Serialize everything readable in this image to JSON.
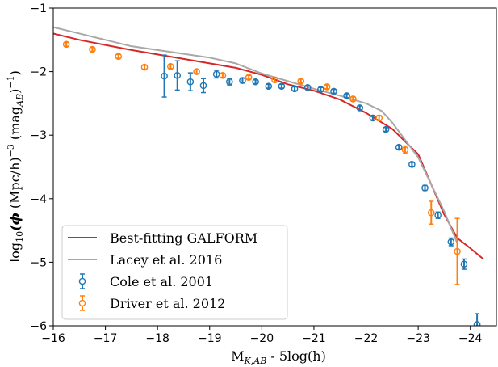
{
  "chart_data": {
    "type": "line",
    "xlabel_main": "M",
    "xlabel_sub": "K,AB",
    "xlabel_rest": " - 5log(h)",
    "ylabel_pre": "log",
    "ylabel_sub": "10",
    "ylabel_phi": "(ϕ",
    "ylabel_mid": " (Mpc/h)",
    "ylabel_exp": "−3",
    "ylabel_post": " (mag",
    "ylabel_sub2": "AB",
    "ylabel_end": ")",
    "ylabel_exp2": "−1",
    "ylabel_close": ")",
    "xlim": [
      -16,
      -24.5
    ],
    "ylim": [
      -6,
      -1
    ],
    "x_ticks": [
      -16,
      -17,
      -18,
      -19,
      -20,
      -21,
      -22,
      -23,
      -24
    ],
    "x_tick_labels": [
      "−16",
      "−17",
      "−18",
      "−19",
      "−20",
      "−21",
      "−22",
      "−23",
      "−24"
    ],
    "y_ticks": [
      -6,
      -5,
      -4,
      -3,
      -2,
      -1
    ],
    "y_tick_labels": [
      "−6",
      "−5",
      "−4",
      "−3",
      "−2",
      "−1"
    ],
    "legend_position": "lower-left",
    "series": [
      {
        "name": "Best-fitting GALFORM",
        "kind": "line",
        "color": "#d62728",
        "x": [
          -16.0,
          -16.5,
          -17.0,
          -17.5,
          -18.0,
          -18.5,
          -19.0,
          -19.5,
          -20.0,
          -20.5,
          -21.0,
          -21.5,
          -22.0,
          -22.5,
          -23.0,
          -23.5,
          -23.75,
          -24.0,
          -24.25
        ],
        "y": [
          -1.4,
          -1.5,
          -1.58,
          -1.66,
          -1.73,
          -1.8,
          -1.87,
          -1.94,
          -2.05,
          -2.2,
          -2.3,
          -2.44,
          -2.65,
          -2.9,
          -3.3,
          -4.25,
          -4.62,
          -4.78,
          -4.95
        ]
      },
      {
        "name": "Lacey et al. 2016",
        "kind": "line",
        "color": "#a8a8a8",
        "x": [
          -16.0,
          -16.5,
          -17.0,
          -17.5,
          -18.0,
          -18.5,
          -19.0,
          -19.5,
          -20.0,
          -20.5,
          -21.0,
          -21.5,
          -22.0,
          -22.3,
          -22.5,
          -23.0,
          -23.5,
          -23.75
        ],
        "y": [
          -1.3,
          -1.4,
          -1.5,
          -1.6,
          -1.66,
          -1.72,
          -1.78,
          -1.87,
          -2.03,
          -2.15,
          -2.27,
          -2.38,
          -2.5,
          -2.62,
          -2.8,
          -3.35,
          -4.2,
          -4.7
        ]
      },
      {
        "name": "Cole et al. 2001",
        "kind": "errorbar",
        "color": "#1f77b4",
        "x": [
          -18.13,
          -18.38,
          -18.63,
          -18.88,
          -19.13,
          -19.38,
          -19.63,
          -19.88,
          -20.13,
          -20.38,
          -20.63,
          -20.88,
          -21.13,
          -21.38,
          -21.63,
          -21.88,
          -22.13,
          -22.38,
          -22.63,
          -22.88,
          -23.13,
          -23.38,
          -23.63,
          -23.88,
          -24.13
        ],
        "y": [
          -2.07,
          -2.06,
          -2.16,
          -2.22,
          -2.04,
          -2.16,
          -2.14,
          -2.16,
          -2.23,
          -2.23,
          -2.27,
          -2.25,
          -2.28,
          -2.31,
          -2.38,
          -2.57,
          -2.73,
          -2.91,
          -3.19,
          -3.46,
          -3.83,
          -4.26,
          -4.68,
          -5.03,
          -5.98
        ],
        "yerr": [
          0.33,
          0.23,
          0.14,
          0.11,
          0.06,
          0.05,
          0.04,
          0.03,
          0.03,
          0.03,
          0.03,
          0.03,
          0.03,
          0.03,
          0.03,
          0.03,
          0.03,
          0.03,
          0.03,
          0.03,
          0.04,
          0.05,
          0.06,
          0.08,
          0.17
        ]
      },
      {
        "name": "Driver et al. 2012",
        "kind": "errorbar",
        "color": "#ff7f0e",
        "x": [
          -16.25,
          -16.75,
          -17.25,
          -17.75,
          -18.25,
          -18.75,
          -19.25,
          -19.75,
          -20.25,
          -20.75,
          -21.25,
          -21.75,
          -22.25,
          -22.75,
          -23.25,
          -23.75
        ],
        "y": [
          -1.57,
          -1.65,
          -1.76,
          -1.93,
          -1.92,
          -2.0,
          -2.06,
          -2.09,
          -2.13,
          -2.15,
          -2.24,
          -2.43,
          -2.73,
          -3.23,
          -4.22,
          -4.83
        ],
        "yerr": [
          0.03,
          0.03,
          0.03,
          0.03,
          0.03,
          0.03,
          0.03,
          0.03,
          0.03,
          0.03,
          0.03,
          0.03,
          0.04,
          0.06,
          0.18,
          0.52
        ]
      }
    ]
  }
}
